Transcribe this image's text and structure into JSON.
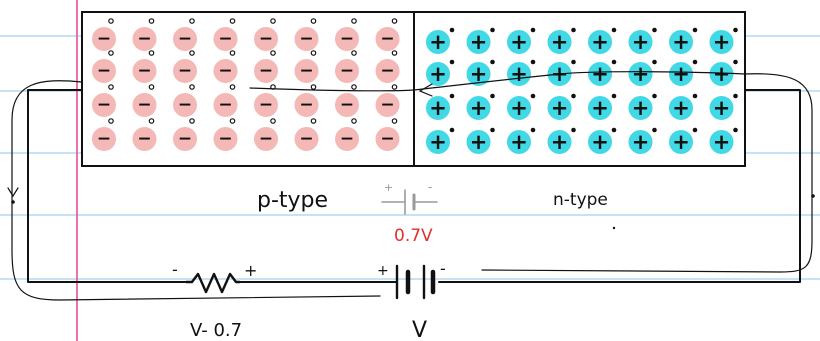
{
  "labels": {
    "p_type": "p-type",
    "n_type": "n-type",
    "junction_voltage": "0.7V",
    "resistor_voltage": "V- 0.7",
    "battery_voltage": "V",
    "resistor_minus": "-",
    "resistor_plus": "+",
    "battery_plus": "+",
    "battery_minus": "-",
    "junction_cap_plus": "+",
    "junction_cap_minus": "-"
  },
  "ion_signs": {
    "p_region": "−",
    "n_region": "+"
  },
  "colors": {
    "ruled_line": "#8fc4ea",
    "margin_line": "#e64ea0",
    "p_ion_fill": "#f4b9b6",
    "n_ion_fill": "#42d9e6",
    "ink": "#111111",
    "voltage_red": "#e0312a",
    "faint_symbol": "#9a9a9a"
  }
}
